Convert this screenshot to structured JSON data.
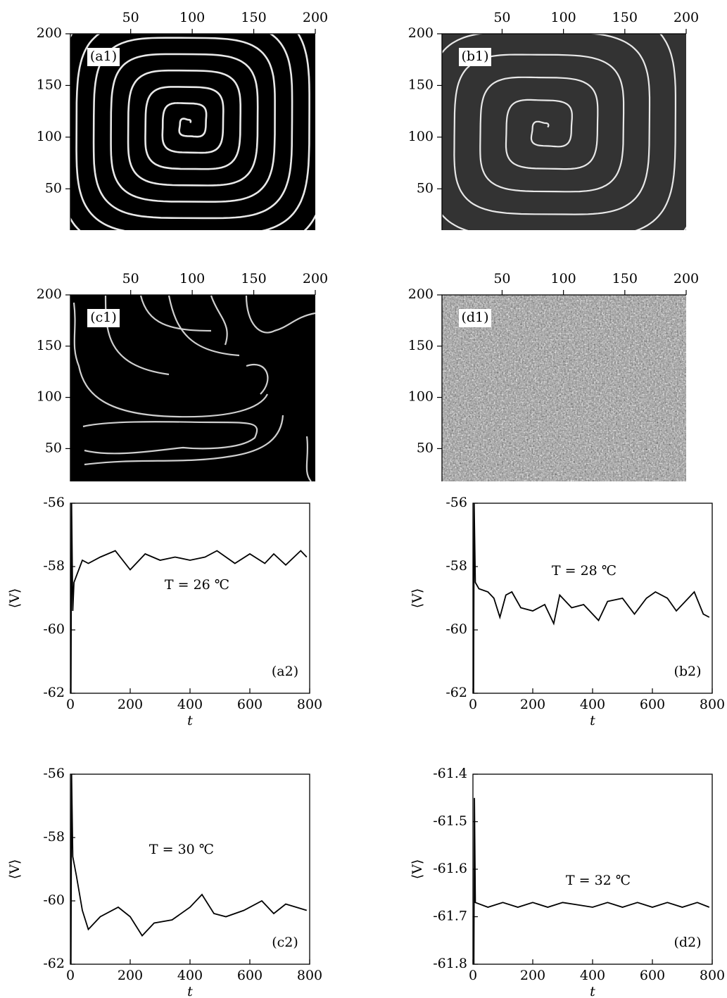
{
  "chart_data": [
    {
      "type": "image",
      "label": "(a1)",
      "xlim": [
        1,
        200
      ],
      "ylim": [
        10,
        200
      ],
      "xticks": [
        50,
        100,
        150,
        200
      ],
      "yticks": [
        50,
        100,
        150,
        200
      ]
    },
    {
      "type": "image",
      "label": "(b1)",
      "xlim": [
        1,
        200
      ],
      "ylim": [
        10,
        200
      ],
      "xticks": [
        50,
        100,
        150,
        200
      ],
      "yticks": [
        50,
        100,
        150,
        200
      ]
    },
    {
      "type": "image",
      "label": "(c1)",
      "xlim": [
        1,
        200
      ],
      "ylim": [
        18,
        200
      ],
      "xticks": [
        50,
        100,
        150,
        200
      ],
      "yticks": [
        50,
        100,
        150,
        200
      ]
    },
    {
      "type": "image",
      "label": "(d1)",
      "xlim": [
        1,
        200
      ],
      "ylim": [
        18,
        200
      ],
      "xticks": [
        50,
        100,
        150,
        200
      ],
      "yticks": [
        50,
        100,
        150,
        200
      ]
    },
    {
      "type": "line",
      "label": "(a2)",
      "annotation": "T = 26 ℃",
      "x_label": "t",
      "y_label": "⟨V⟩",
      "color": "#000000",
      "xlim": [
        0,
        800
      ],
      "ylim": [
        -62,
        -56
      ],
      "xticks": [
        0,
        200,
        400,
        600,
        800
      ],
      "yticks": [
        -62,
        -60,
        -58,
        -56
      ],
      "x": [
        2,
        4,
        8,
        12,
        20,
        40,
        60,
        100,
        150,
        200,
        250,
        300,
        350,
        400,
        450,
        490,
        550,
        600,
        650,
        680,
        720,
        770,
        790
      ],
      "values": [
        -62,
        -56,
        -59.4,
        -58.5,
        -58.3,
        -57.8,
        -57.9,
        -57.7,
        -57.5,
        -58.1,
        -57.6,
        -57.8,
        -57.7,
        -57.8,
        -57.7,
        -57.5,
        -57.9,
        -57.6,
        -57.9,
        -57.6,
        -57.95,
        -57.5,
        -57.7
      ]
    },
    {
      "type": "line",
      "label": "(b2)",
      "annotation": "T = 28 ℃",
      "x_label": "t",
      "y_label": "⟨V⟩",
      "color": "#000000",
      "xlim": [
        0,
        800
      ],
      "ylim": [
        -62,
        -56
      ],
      "xticks": [
        0,
        200,
        400,
        600,
        800
      ],
      "yticks": [
        -62,
        -60,
        -58,
        -56
      ],
      "x": [
        2,
        4,
        8,
        20,
        50,
        70,
        90,
        110,
        130,
        160,
        200,
        240,
        270,
        290,
        330,
        370,
        420,
        450,
        500,
        540,
        580,
        610,
        650,
        680,
        740,
        770,
        790
      ],
      "values": [
        -62,
        -56,
        -58.5,
        -58.7,
        -58.8,
        -59.0,
        -59.6,
        -58.9,
        -58.8,
        -59.3,
        -59.4,
        -59.2,
        -59.8,
        -58.9,
        -59.3,
        -59.2,
        -59.7,
        -59.1,
        -59.0,
        -59.5,
        -59.0,
        -58.8,
        -59.0,
        -59.4,
        -58.8,
        -59.5,
        -59.6
      ]
    },
    {
      "type": "line",
      "label": "(c2)",
      "annotation": "T = 30 ℃",
      "x_label": "t",
      "y_label": "⟨V⟩",
      "color": "#000000",
      "xlim": [
        0,
        800
      ],
      "ylim": [
        -62,
        -56
      ],
      "xticks": [
        0,
        200,
        400,
        600,
        800
      ],
      "yticks": [
        -62,
        -60,
        -58,
        -56
      ],
      "x": [
        2,
        4,
        8,
        20,
        40,
        60,
        100,
        160,
        200,
        240,
        280,
        340,
        400,
        440,
        480,
        520,
        580,
        640,
        680,
        720,
        790
      ],
      "values": [
        -62,
        -56,
        -58.6,
        -59.2,
        -60.3,
        -60.9,
        -60.5,
        -60.2,
        -60.5,
        -61.1,
        -60.7,
        -60.6,
        -60.2,
        -59.8,
        -60.4,
        -60.5,
        -60.3,
        -60.0,
        -60.4,
        -60.1,
        -60.3
      ]
    },
    {
      "type": "line",
      "label": "(d2)",
      "annotation": "T = 32 ℃",
      "x_label": "t",
      "y_label": "⟨V⟩",
      "color": "#000000",
      "xlim": [
        0,
        800
      ],
      "ylim": [
        -61.8,
        -61.4
      ],
      "xticks": [
        0,
        200,
        400,
        600,
        800
      ],
      "yticks": [
        -61.8,
        -61.7,
        -61.6,
        -61.5,
        -61.4
      ],
      "x": [
        3,
        5,
        8,
        50,
        100,
        150,
        200,
        250,
        300,
        350,
        400,
        450,
        500,
        550,
        600,
        650,
        700,
        750,
        790
      ],
      "values": [
        -61.8,
        -61.45,
        -61.67,
        -61.68,
        -61.67,
        -61.68,
        -61.67,
        -61.68,
        -61.67,
        -61.675,
        -61.68,
        -61.67,
        -61.68,
        -61.67,
        -61.68,
        -61.67,
        -61.68,
        -61.67,
        -61.68
      ]
    }
  ]
}
